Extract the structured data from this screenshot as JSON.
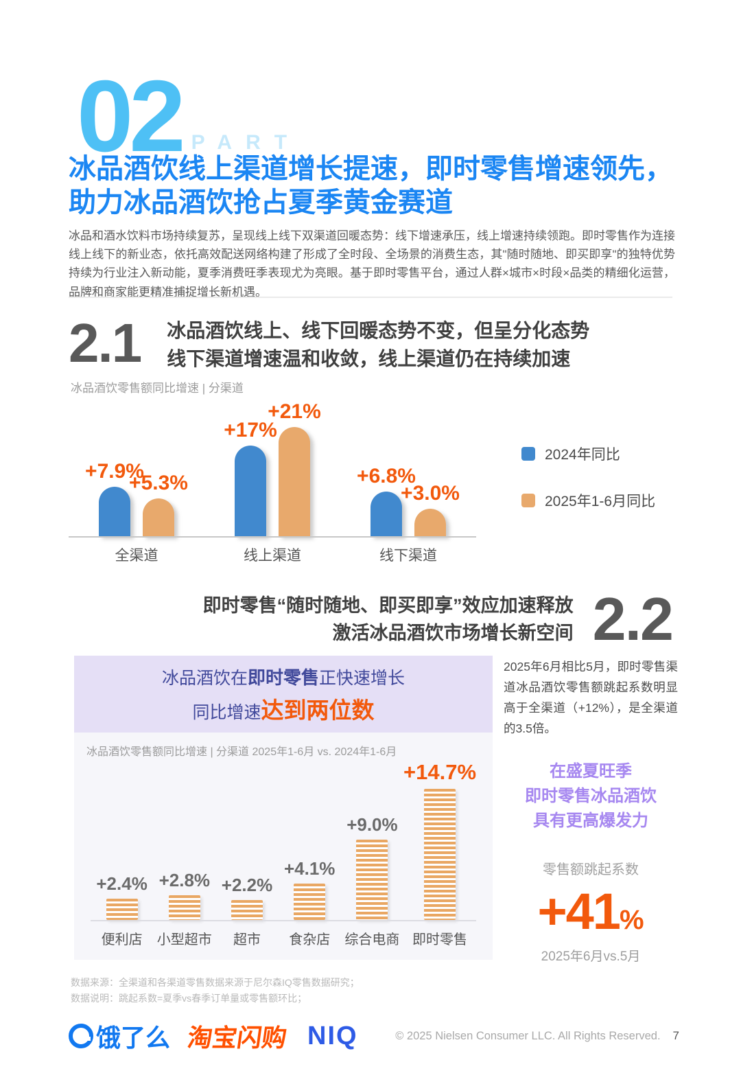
{
  "header": {
    "part_number": "02",
    "part_label": "PART",
    "title_line1": "冰品酒饮线上渠道增长提速，即时零售增速领先，",
    "title_line2": "助力冰品酒饮抢占夏季黄金赛道",
    "intro": "冰品和酒水饮料市场持续复苏，呈现线上线下双渠道回暖态势：线下增速承压，线上增速持续领跑。即时零售作为连接线上线下的新业态，依托高效配送网络构建了形成了全时段、全场景的消费生态，其\"随时随地、即买即享\"的独特优势持续为行业注入新动能，夏季消费旺季表现尤为亮眼。基于即时零售平台，通过人群×城市×时段×品类的精细化运营，品牌和商家能更精准捕捉增长新机遇。"
  },
  "section_2_1": {
    "number": "2.1",
    "heading_line1": "冰品酒饮线上、线下回暖态势不变，但呈分化态势",
    "heading_line2": "线下渠道增速温和收敛，线上渠道仍在持续加速",
    "caption": "冰品酒饮零售额同比增速 | 分渠道"
  },
  "chart_data": [
    {
      "type": "bar",
      "title": "冰品酒饮零售额同比增速 | 分渠道",
      "categories": [
        "全渠道",
        "线上渠道",
        "线下渠道"
      ],
      "series": [
        {
          "name": "2024年同比",
          "color": "#4189CE",
          "values": [
            7.9,
            17,
            6.8
          ],
          "labels": [
            "+7.9%",
            "+17%",
            "+6.8%"
          ]
        },
        {
          "name": "2025年1-6月同比",
          "color": "#E8A96C",
          "values": [
            5.3,
            21,
            3.0
          ],
          "labels": [
            "+5.3%",
            "+21%",
            "+3.0%"
          ]
        }
      ],
      "unit": "%",
      "legend_position": "right",
      "grid": false
    },
    {
      "type": "bar",
      "title": "冰品酒饮零售额同比增速 | 分渠道 2025年1-6月 vs. 2024年1-6月",
      "categories": [
        "便利店",
        "小型超市",
        "超市",
        "食杂店",
        "综合电商",
        "即时零售"
      ],
      "values": [
        2.4,
        2.8,
        2.2,
        4.1,
        9.0,
        14.7
      ],
      "labels": [
        "+2.4%",
        "+2.8%",
        "+2.2%",
        "+4.1%",
        "+9.0%",
        "+14.7%"
      ],
      "highlight_index": 5,
      "bar_style": "striped",
      "unit": "%",
      "grid": false
    }
  ],
  "section_2_2": {
    "number": "2.2",
    "heading_line1": "即时零售“随时随地、即买即享”效应加速释放",
    "heading_line2": "激活冰品酒饮市场增长新空间"
  },
  "panel": {
    "title1_pre": "冰品酒饮在",
    "title1_bold": "即时零售",
    "title1_post": "正快速增长",
    "title2_pre": "同比增速",
    "title2_em": "达到两位数",
    "caption": "冰品酒饮零售额同比增速 | 分渠道 2025年1-6月 vs. 2024年1-6月"
  },
  "sidebar": {
    "paragraph": "2025年6月相比5月，即时零售渠道冰品酒饮零售额跳起系数明显高于全渠道（+12%），是全渠道的3.5倍。",
    "highlight_line1": "在盛夏旺季",
    "highlight_line2": "即时零售冰品酒饮",
    "highlight_line3": "具有更高爆发力",
    "metric_label": "零售额跳起系数",
    "metric_value": "+41",
    "metric_unit": "%",
    "metric_caption": "2025年6月vs.5月"
  },
  "footnotes": {
    "line1": "数据来源：全渠道和各渠道零售数据来源于尼尔森IQ零售数据研究；",
    "line2": "数据说明：跳起系数=夏季vs春季订单量或零售额环比；"
  },
  "footer": {
    "logo_eleme": "饿了么",
    "logo_taobao": "淘宝闪购",
    "logo_niq": "NIQ",
    "copyright": "© 2025 Nielsen Consumer LLC. All Rights Reserved.",
    "page_number": "7"
  },
  "colors": {
    "part_blue": "#4EC0F5",
    "title_blue": "#1B86F3",
    "bar_blue": "#4189CE",
    "bar_orange": "#E8A96C",
    "label_orange": "#F2590C",
    "highlight_purple": "#A687F0",
    "panel_title_indigo": "#41499B",
    "panel_header_bg": "#E5DFF6",
    "panel_bg": "#F6F6FA"
  }
}
